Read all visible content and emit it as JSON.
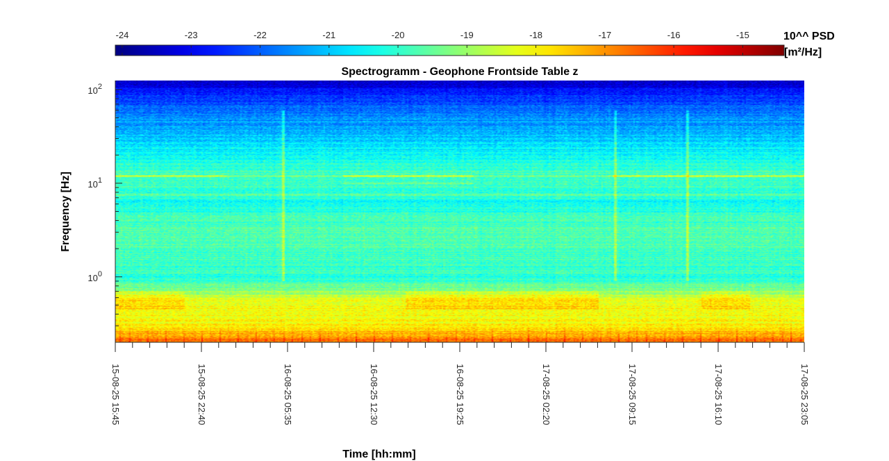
{
  "chart_data": {
    "type": "heatmap",
    "title": "Spectrogramm - Geophone Frontside Table z",
    "xlabel": "Time [hh:mm]",
    "ylabel": "Frequency [Hz]",
    "y_scale": "log",
    "ylim": [
      0.2,
      125
    ],
    "x_ticks": [
      "15-08-25 15:45",
      "15-08-25 22:40",
      "16-08-25 05:35",
      "16-08-25 12:30",
      "16-08-25 19:25",
      "17-08-25 02:20",
      "17-08-25 09:15",
      "17-08-25 16:10",
      "17-08-25 23:05"
    ],
    "y_ticks": [
      {
        "value": 1,
        "base": "10",
        "exp": "0"
      },
      {
        "value": 10,
        "base": "10",
        "exp": "1"
      },
      {
        "value": 100,
        "base": "10",
        "exp": "2"
      }
    ],
    "colorbar": {
      "label_line1": "10^^ PSD",
      "label_line2": "[m²/Hz]",
      "ticks": [
        "-24",
        "-23",
        "-22",
        "-21",
        "-20",
        "-19",
        "-18",
        "-17",
        "-16",
        "-15"
      ],
      "range": [
        -24.1,
        -14.4
      ],
      "colormap": "jet"
    },
    "psd_profile": [
      {
        "freq": 0.2,
        "log_psd": -16.6
      },
      {
        "freq": 0.3,
        "log_psd": -18.0
      },
      {
        "freq": 0.55,
        "log_psd": -18.2
      },
      {
        "freq": 0.8,
        "log_psd": -19.5
      },
      {
        "freq": 1.0,
        "log_psd": -20.0
      },
      {
        "freq": 3.2,
        "log_psd": -19.6
      },
      {
        "freq": 6.0,
        "log_psd": -20.3
      },
      {
        "freq": 12.0,
        "log_psd": -19.8
      },
      {
        "freq": 20.0,
        "log_psd": -20.5
      },
      {
        "freq": 50.0,
        "log_psd": -21.6
      },
      {
        "freq": 80.0,
        "log_psd": -22.3
      },
      {
        "freq": 125.0,
        "log_psd": -23.4
      }
    ],
    "grid": false
  }
}
